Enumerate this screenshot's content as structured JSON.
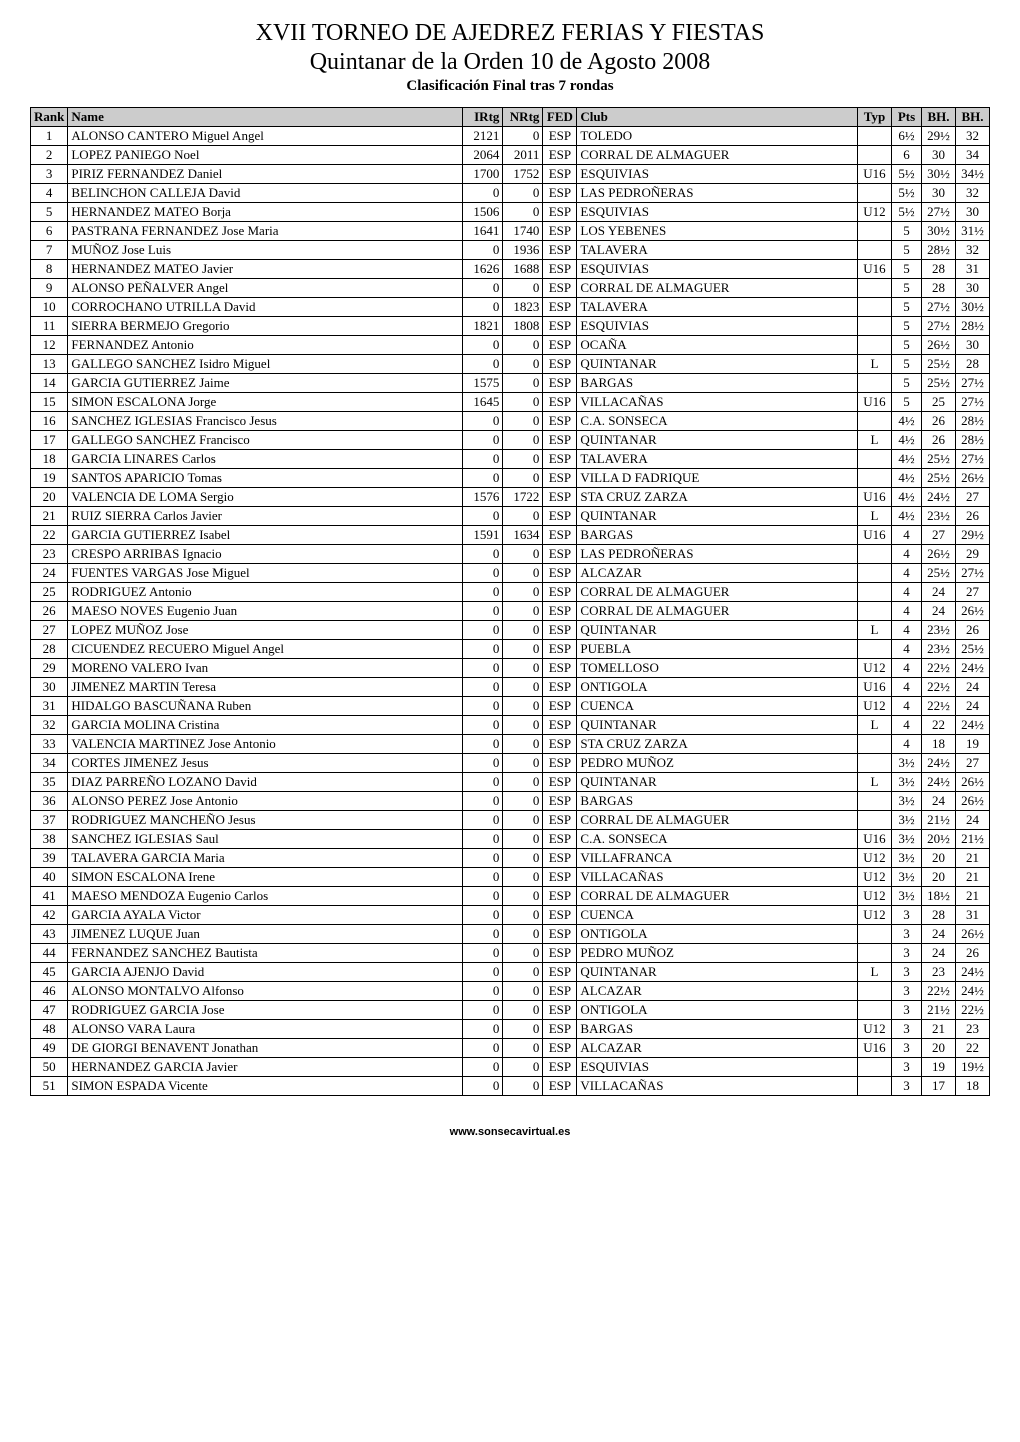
{
  "title": "XVII TORNEO DE AJEDREZ FERIAS Y FIESTAS",
  "subtitle": "Quintanar de la Orden 10 de Agosto 2008",
  "caption": "Clasificación Final tras 7 rondas",
  "footer": "www.sonsecavirtual.es",
  "columns": [
    "Rank",
    "Name",
    "IRtg",
    "NRtg",
    "FED",
    "Club",
    "Typ",
    "Pts",
    "BH.",
    "BH."
  ],
  "rows": [
    {
      "rank": "1",
      "name": "ALONSO CANTERO Miguel Angel",
      "irtg": "2121",
      "nrtg": "0",
      "fed": "ESP",
      "club": "TOLEDO",
      "typ": "",
      "pts": "6½",
      "bh1": "29½",
      "bh2": "32"
    },
    {
      "rank": "2",
      "name": "LOPEZ PANIEGO Noel",
      "irtg": "2064",
      "nrtg": "2011",
      "fed": "ESP",
      "club": "CORRAL DE ALMAGUER",
      "typ": "",
      "pts": "6",
      "bh1": "30",
      "bh2": "34"
    },
    {
      "rank": "3",
      "name": "PIRIZ FERNANDEZ Daniel",
      "irtg": "1700",
      "nrtg": "1752",
      "fed": "ESP",
      "club": "ESQUIVIAS",
      "typ": "U16",
      "pts": "5½",
      "bh1": "30½",
      "bh2": "34½"
    },
    {
      "rank": "4",
      "name": "BELINCHON CALLEJA David",
      "irtg": "0",
      "nrtg": "0",
      "fed": "ESP",
      "club": "LAS PEDROÑERAS",
      "typ": "",
      "pts": "5½",
      "bh1": "30",
      "bh2": "32"
    },
    {
      "rank": "5",
      "name": "HERNANDEZ MATEO Borja",
      "irtg": "1506",
      "nrtg": "0",
      "fed": "ESP",
      "club": "ESQUIVIAS",
      "typ": "U12",
      "pts": "5½",
      "bh1": "27½",
      "bh2": "30"
    },
    {
      "rank": "6",
      "name": "PASTRANA FERNANDEZ Jose Maria",
      "irtg": "1641",
      "nrtg": "1740",
      "fed": "ESP",
      "club": "LOS YEBENES",
      "typ": "",
      "pts": "5",
      "bh1": "30½",
      "bh2": "31½"
    },
    {
      "rank": "7",
      "name": "MUÑOZ Jose Luis",
      "irtg": "0",
      "nrtg": "1936",
      "fed": "ESP",
      "club": "TALAVERA",
      "typ": "",
      "pts": "5",
      "bh1": "28½",
      "bh2": "32"
    },
    {
      "rank": "8",
      "name": "HERNANDEZ MATEO Javier",
      "irtg": "1626",
      "nrtg": "1688",
      "fed": "ESP",
      "club": "ESQUIVIAS",
      "typ": "U16",
      "pts": "5",
      "bh1": "28",
      "bh2": "31"
    },
    {
      "rank": "9",
      "name": "ALONSO PEÑALVER Angel",
      "irtg": "0",
      "nrtg": "0",
      "fed": "ESP",
      "club": "CORRAL DE ALMAGUER",
      "typ": "",
      "pts": "5",
      "bh1": "28",
      "bh2": "30"
    },
    {
      "rank": "10",
      "name": "CORROCHANO UTRILLA David",
      "irtg": "0",
      "nrtg": "1823",
      "fed": "ESP",
      "club": "TALAVERA",
      "typ": "",
      "pts": "5",
      "bh1": "27½",
      "bh2": "30½"
    },
    {
      "rank": "11",
      "name": "SIERRA BERMEJO Gregorio",
      "irtg": "1821",
      "nrtg": "1808",
      "fed": "ESP",
      "club": "ESQUIVIAS",
      "typ": "",
      "pts": "5",
      "bh1": "27½",
      "bh2": "28½"
    },
    {
      "rank": "12",
      "name": "FERNANDEZ Antonio",
      "irtg": "0",
      "nrtg": "0",
      "fed": "ESP",
      "club": "OCAÑA",
      "typ": "",
      "pts": "5",
      "bh1": "26½",
      "bh2": "30"
    },
    {
      "rank": "13",
      "name": "GALLEGO SANCHEZ Isidro Miguel",
      "irtg": "0",
      "nrtg": "0",
      "fed": "ESP",
      "club": "QUINTANAR",
      "typ": "L",
      "pts": "5",
      "bh1": "25½",
      "bh2": "28"
    },
    {
      "rank": "14",
      "name": "GARCIA GUTIERREZ Jaime",
      "irtg": "1575",
      "nrtg": "0",
      "fed": "ESP",
      "club": "BARGAS",
      "typ": "",
      "pts": "5",
      "bh1": "25½",
      "bh2": "27½"
    },
    {
      "rank": "15",
      "name": "SIMON ESCALONA Jorge",
      "irtg": "1645",
      "nrtg": "0",
      "fed": "ESP",
      "club": "VILLACAÑAS",
      "typ": "U16",
      "pts": "5",
      "bh1": "25",
      "bh2": "27½"
    },
    {
      "rank": "16",
      "name": "SANCHEZ IGLESIAS Francisco Jesus",
      "irtg": "0",
      "nrtg": "0",
      "fed": "ESP",
      "club": "C.A. SONSECA",
      "typ": "",
      "pts": "4½",
      "bh1": "26",
      "bh2": "28½"
    },
    {
      "rank": "17",
      "name": "GALLEGO SANCHEZ Francisco",
      "irtg": "0",
      "nrtg": "0",
      "fed": "ESP",
      "club": "QUINTANAR",
      "typ": "L",
      "pts": "4½",
      "bh1": "26",
      "bh2": "28½"
    },
    {
      "rank": "18",
      "name": "GARCIA LINARES Carlos",
      "irtg": "0",
      "nrtg": "0",
      "fed": "ESP",
      "club": "TALAVERA",
      "typ": "",
      "pts": "4½",
      "bh1": "25½",
      "bh2": "27½"
    },
    {
      "rank": "19",
      "name": "SANTOS APARICIO Tomas",
      "irtg": "0",
      "nrtg": "0",
      "fed": "ESP",
      "club": "VILLA D FADRIQUE",
      "typ": "",
      "pts": "4½",
      "bh1": "25½",
      "bh2": "26½"
    },
    {
      "rank": "20",
      "name": "VALENCIA DE LOMA Sergio",
      "irtg": "1576",
      "nrtg": "1722",
      "fed": "ESP",
      "club": "STA CRUZ ZARZA",
      "typ": "U16",
      "pts": "4½",
      "bh1": "24½",
      "bh2": "27"
    },
    {
      "rank": "21",
      "name": "RUIZ SIERRA Carlos Javier",
      "irtg": "0",
      "nrtg": "0",
      "fed": "ESP",
      "club": "QUINTANAR",
      "typ": "L",
      "pts": "4½",
      "bh1": "23½",
      "bh2": "26"
    },
    {
      "rank": "22",
      "name": "GARCIA GUTIERREZ Isabel",
      "irtg": "1591",
      "nrtg": "1634",
      "fed": "ESP",
      "club": "BARGAS",
      "typ": "U16",
      "pts": "4",
      "bh1": "27",
      "bh2": "29½"
    },
    {
      "rank": "23",
      "name": "CRESPO ARRIBAS Ignacio",
      "irtg": "0",
      "nrtg": "0",
      "fed": "ESP",
      "club": "LAS PEDROÑERAS",
      "typ": "",
      "pts": "4",
      "bh1": "26½",
      "bh2": "29"
    },
    {
      "rank": "24",
      "name": "FUENTES VARGAS Jose Miguel",
      "irtg": "0",
      "nrtg": "0",
      "fed": "ESP",
      "club": "ALCAZAR",
      "typ": "",
      "pts": "4",
      "bh1": "25½",
      "bh2": "27½"
    },
    {
      "rank": "25",
      "name": "RODRIGUEZ Antonio",
      "irtg": "0",
      "nrtg": "0",
      "fed": "ESP",
      "club": "CORRAL DE ALMAGUER",
      "typ": "",
      "pts": "4",
      "bh1": "24",
      "bh2": "27"
    },
    {
      "rank": "26",
      "name": "MAESO NOVES Eugenio Juan",
      "irtg": "0",
      "nrtg": "0",
      "fed": "ESP",
      "club": "CORRAL DE ALMAGUER",
      "typ": "",
      "pts": "4",
      "bh1": "24",
      "bh2": "26½"
    },
    {
      "rank": "27",
      "name": "LOPEZ MUÑOZ Jose",
      "irtg": "0",
      "nrtg": "0",
      "fed": "ESP",
      "club": "QUINTANAR",
      "typ": "L",
      "pts": "4",
      "bh1": "23½",
      "bh2": "26"
    },
    {
      "rank": "28",
      "name": "CICUENDEZ RECUERO Miguel Angel",
      "irtg": "0",
      "nrtg": "0",
      "fed": "ESP",
      "club": "PUEBLA",
      "typ": "",
      "pts": "4",
      "bh1": "23½",
      "bh2": "25½"
    },
    {
      "rank": "29",
      "name": "MORENO VALERO Ivan",
      "irtg": "0",
      "nrtg": "0",
      "fed": "ESP",
      "club": "TOMELLOSO",
      "typ": "U12",
      "pts": "4",
      "bh1": "22½",
      "bh2": "24½"
    },
    {
      "rank": "30",
      "name": "JIMENEZ MARTIN Teresa",
      "irtg": "0",
      "nrtg": "0",
      "fed": "ESP",
      "club": "ONTIGOLA",
      "typ": "U16",
      "pts": "4",
      "bh1": "22½",
      "bh2": "24"
    },
    {
      "rank": "31",
      "name": "HIDALGO BASCUÑANA Ruben",
      "irtg": "0",
      "nrtg": "0",
      "fed": "ESP",
      "club": "CUENCA",
      "typ": "U12",
      "pts": "4",
      "bh1": "22½",
      "bh2": "24"
    },
    {
      "rank": "32",
      "name": "GARCIA MOLINA Cristina",
      "irtg": "0",
      "nrtg": "0",
      "fed": "ESP",
      "club": "QUINTANAR",
      "typ": "L",
      "pts": "4",
      "bh1": "22",
      "bh2": "24½"
    },
    {
      "rank": "33",
      "name": "VALENCIA MARTINEZ Jose Antonio",
      "irtg": "0",
      "nrtg": "0",
      "fed": "ESP",
      "club": "STA CRUZ ZARZA",
      "typ": "",
      "pts": "4",
      "bh1": "18",
      "bh2": "19"
    },
    {
      "rank": "34",
      "name": "CORTES JIMENEZ Jesus",
      "irtg": "0",
      "nrtg": "0",
      "fed": "ESP",
      "club": "PEDRO MUÑOZ",
      "typ": "",
      "pts": "3½",
      "bh1": "24½",
      "bh2": "27"
    },
    {
      "rank": "35",
      "name": "DIAZ PARREÑO LOZANO David",
      "irtg": "0",
      "nrtg": "0",
      "fed": "ESP",
      "club": "QUINTANAR",
      "typ": "L",
      "pts": "3½",
      "bh1": "24½",
      "bh2": "26½"
    },
    {
      "rank": "36",
      "name": "ALONSO PEREZ Jose Antonio",
      "irtg": "0",
      "nrtg": "0",
      "fed": "ESP",
      "club": "BARGAS",
      "typ": "",
      "pts": "3½",
      "bh1": "24",
      "bh2": "26½"
    },
    {
      "rank": "37",
      "name": "RODRIGUEZ MANCHEÑO Jesus",
      "irtg": "0",
      "nrtg": "0",
      "fed": "ESP",
      "club": "CORRAL DE ALMAGUER",
      "typ": "",
      "pts": "3½",
      "bh1": "21½",
      "bh2": "24"
    },
    {
      "rank": "38",
      "name": "SANCHEZ IGLESIAS Saul",
      "irtg": "0",
      "nrtg": "0",
      "fed": "ESP",
      "club": "C.A. SONSECA",
      "typ": "U16",
      "pts": "3½",
      "bh1": "20½",
      "bh2": "21½"
    },
    {
      "rank": "39",
      "name": "TALAVERA GARCIA Maria",
      "irtg": "0",
      "nrtg": "0",
      "fed": "ESP",
      "club": "VILLAFRANCA",
      "typ": "U12",
      "pts": "3½",
      "bh1": "20",
      "bh2": "21"
    },
    {
      "rank": "40",
      "name": "SIMON ESCALONA Irene",
      "irtg": "0",
      "nrtg": "0",
      "fed": "ESP",
      "club": "VILLACAÑAS",
      "typ": "U12",
      "pts": "3½",
      "bh1": "20",
      "bh2": "21"
    },
    {
      "rank": "41",
      "name": "MAESO MENDOZA Eugenio Carlos",
      "irtg": "0",
      "nrtg": "0",
      "fed": "ESP",
      "club": "CORRAL DE ALMAGUER",
      "typ": "U12",
      "pts": "3½",
      "bh1": "18½",
      "bh2": "21"
    },
    {
      "rank": "42",
      "name": "GARCIA AYALA Victor",
      "irtg": "0",
      "nrtg": "0",
      "fed": "ESP",
      "club": "CUENCA",
      "typ": "U12",
      "pts": "3",
      "bh1": "28",
      "bh2": "31"
    },
    {
      "rank": "43",
      "name": "JIMENEZ LUQUE Juan",
      "irtg": "0",
      "nrtg": "0",
      "fed": "ESP",
      "club": "ONTIGOLA",
      "typ": "",
      "pts": "3",
      "bh1": "24",
      "bh2": "26½"
    },
    {
      "rank": "44",
      "name": "FERNANDEZ SANCHEZ Bautista",
      "irtg": "0",
      "nrtg": "0",
      "fed": "ESP",
      "club": "PEDRO MUÑOZ",
      "typ": "",
      "pts": "3",
      "bh1": "24",
      "bh2": "26"
    },
    {
      "rank": "45",
      "name": "GARCIA AJENJO David",
      "irtg": "0",
      "nrtg": "0",
      "fed": "ESP",
      "club": "QUINTANAR",
      "typ": "L",
      "pts": "3",
      "bh1": "23",
      "bh2": "24½"
    },
    {
      "rank": "46",
      "name": "ALONSO MONTALVO Alfonso",
      "irtg": "0",
      "nrtg": "0",
      "fed": "ESP",
      "club": "ALCAZAR",
      "typ": "",
      "pts": "3",
      "bh1": "22½",
      "bh2": "24½"
    },
    {
      "rank": "47",
      "name": "RODRIGUEZ GARCIA Jose",
      "irtg": "0",
      "nrtg": "0",
      "fed": "ESP",
      "club": "ONTIGOLA",
      "typ": "",
      "pts": "3",
      "bh1": "21½",
      "bh2": "22½"
    },
    {
      "rank": "48",
      "name": "ALONSO VARA Laura",
      "irtg": "0",
      "nrtg": "0",
      "fed": "ESP",
      "club": "BARGAS",
      "typ": "U12",
      "pts": "3",
      "bh1": "21",
      "bh2": "23"
    },
    {
      "rank": "49",
      "name": "DE GIORGI BENAVENT Jonathan",
      "irtg": "0",
      "nrtg": "0",
      "fed": "ESP",
      "club": "ALCAZAR",
      "typ": "U16",
      "pts": "3",
      "bh1": "20",
      "bh2": "22"
    },
    {
      "rank": "50",
      "name": "HERNANDEZ GARCIA Javier",
      "irtg": "0",
      "nrtg": "0",
      "fed": "ESP",
      "club": "ESQUIVIAS",
      "typ": "",
      "pts": "3",
      "bh1": "19",
      "bh2": "19½"
    },
    {
      "rank": "51",
      "name": "SIMON ESPADA Vicente",
      "irtg": "0",
      "nrtg": "0",
      "fed": "ESP",
      "club": "VILLACAÑAS",
      "typ": "",
      "pts": "3",
      "bh1": "17",
      "bh2": "18"
    }
  ]
}
